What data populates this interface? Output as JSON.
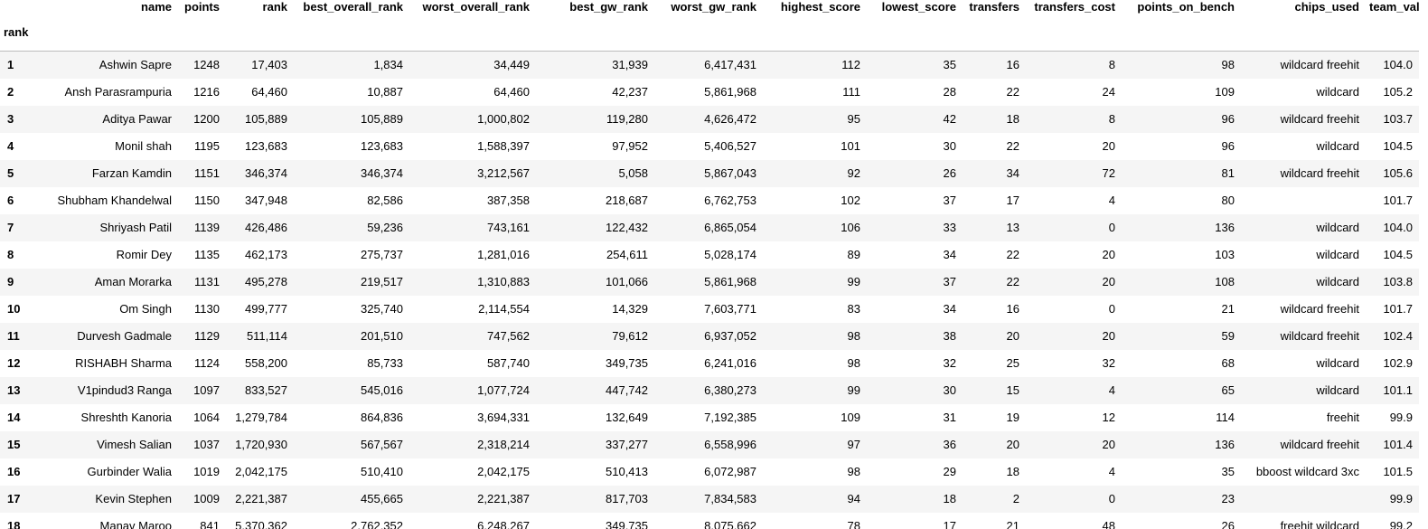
{
  "index_name": "rank",
  "columns": [
    "name",
    "points",
    "rank",
    "best_overall_rank",
    "worst_overall_rank",
    "best_gw_rank",
    "worst_gw_rank",
    "highest_score",
    "lowest_score",
    "transfers",
    "transfers_cost",
    "points_on_bench",
    "chips_used",
    "team_value"
  ],
  "rows": [
    {
      "idx": "1",
      "cells": [
        "Ashwin Sapre",
        "1248",
        "17,403",
        "1,834",
        "34,449",
        "31,939",
        "6,417,431",
        "112",
        "35",
        "16",
        "8",
        "98",
        "wildcard freehit",
        "104.0"
      ]
    },
    {
      "idx": "2",
      "cells": [
        "Ansh Parasrampuria",
        "1216",
        "64,460",
        "10,887",
        "64,460",
        "42,237",
        "5,861,968",
        "111",
        "28",
        "22",
        "24",
        "109",
        "wildcard",
        "105.2"
      ]
    },
    {
      "idx": "3",
      "cells": [
        "Aditya Pawar",
        "1200",
        "105,889",
        "105,889",
        "1,000,802",
        "119,280",
        "4,626,472",
        "95",
        "42",
        "18",
        "8",
        "96",
        "wildcard freehit",
        "103.7"
      ]
    },
    {
      "idx": "4",
      "cells": [
        "Monil shah",
        "1195",
        "123,683",
        "123,683",
        "1,588,397",
        "97,952",
        "5,406,527",
        "101",
        "30",
        "22",
        "20",
        "96",
        "wildcard",
        "104.5"
      ]
    },
    {
      "idx": "5",
      "cells": [
        "Farzan Kamdin",
        "1151",
        "346,374",
        "346,374",
        "3,212,567",
        "5,058",
        "5,867,043",
        "92",
        "26",
        "34",
        "72",
        "81",
        "wildcard freehit",
        "105.6"
      ]
    },
    {
      "idx": "6",
      "cells": [
        "Shubham Khandelwal",
        "1150",
        "347,948",
        "82,586",
        "387,358",
        "218,687",
        "6,762,753",
        "102",
        "37",
        "17",
        "4",
        "80",
        "",
        "101.7"
      ]
    },
    {
      "idx": "7",
      "cells": [
        "Shriyash Patil",
        "1139",
        "426,486",
        "59,236",
        "743,161",
        "122,432",
        "6,865,054",
        "106",
        "33",
        "13",
        "0",
        "136",
        "wildcard",
        "104.0"
      ]
    },
    {
      "idx": "8",
      "cells": [
        "Romir Dey",
        "1135",
        "462,173",
        "275,737",
        "1,281,016",
        "254,611",
        "5,028,174",
        "89",
        "34",
        "22",
        "20",
        "103",
        "wildcard",
        "104.5"
      ]
    },
    {
      "idx": "9",
      "cells": [
        "Aman Morarka",
        "1131",
        "495,278",
        "219,517",
        "1,310,883",
        "101,066",
        "5,861,968",
        "99",
        "37",
        "22",
        "20",
        "108",
        "wildcard",
        "103.8"
      ]
    },
    {
      "idx": "10",
      "cells": [
        "Om Singh",
        "1130",
        "499,777",
        "325,740",
        "2,114,554",
        "14,329",
        "7,603,771",
        "83",
        "34",
        "16",
        "0",
        "21",
        "wildcard freehit",
        "101.7"
      ]
    },
    {
      "idx": "11",
      "cells": [
        "Durvesh Gadmale",
        "1129",
        "511,114",
        "201,510",
        "747,562",
        "79,612",
        "6,937,052",
        "98",
        "38",
        "20",
        "20",
        "59",
        "wildcard freehit",
        "102.4"
      ]
    },
    {
      "idx": "12",
      "cells": [
        "RISHABH Sharma",
        "1124",
        "558,200",
        "85,733",
        "587,740",
        "349,735",
        "6,241,016",
        "98",
        "32",
        "25",
        "32",
        "68",
        "wildcard",
        "102.9"
      ]
    },
    {
      "idx": "13",
      "cells": [
        "V1pindud3 Ranga",
        "1097",
        "833,527",
        "545,016",
        "1,077,724",
        "447,742",
        "6,380,273",
        "99",
        "30",
        "15",
        "4",
        "65",
        "wildcard",
        "101.1"
      ]
    },
    {
      "idx": "14",
      "cells": [
        "Shreshth Kanoria",
        "1064",
        "1,279,784",
        "864,836",
        "3,694,331",
        "132,649",
        "7,192,385",
        "109",
        "31",
        "19",
        "12",
        "114",
        "freehit",
        "99.9"
      ]
    },
    {
      "idx": "15",
      "cells": [
        "Vimesh Salian",
        "1037",
        "1,720,930",
        "567,567",
        "2,318,214",
        "337,277",
        "6,558,996",
        "97",
        "36",
        "20",
        "20",
        "136",
        "wildcard freehit",
        "101.4"
      ]
    },
    {
      "idx": "16",
      "cells": [
        "Gurbinder Walia",
        "1019",
        "2,042,175",
        "510,410",
        "2,042,175",
        "510,413",
        "6,072,987",
        "98",
        "29",
        "18",
        "4",
        "35",
        "bboost wildcard 3xc",
        "101.5"
      ]
    },
    {
      "idx": "17",
      "cells": [
        "Kevin Stephen",
        "1009",
        "2,221,387",
        "455,665",
        "2,221,387",
        "817,703",
        "7,834,583",
        "94",
        "18",
        "2",
        "0",
        "23",
        "",
        "99.9"
      ]
    },
    {
      "idx": "18",
      "cells": [
        "Manav Maroo",
        "841",
        "5,370,362",
        "2,762,352",
        "6,248,267",
        "349,735",
        "8,075,662",
        "78",
        "17",
        "21",
        "48",
        "26",
        "freehit wildcard",
        "99.2"
      ]
    }
  ]
}
